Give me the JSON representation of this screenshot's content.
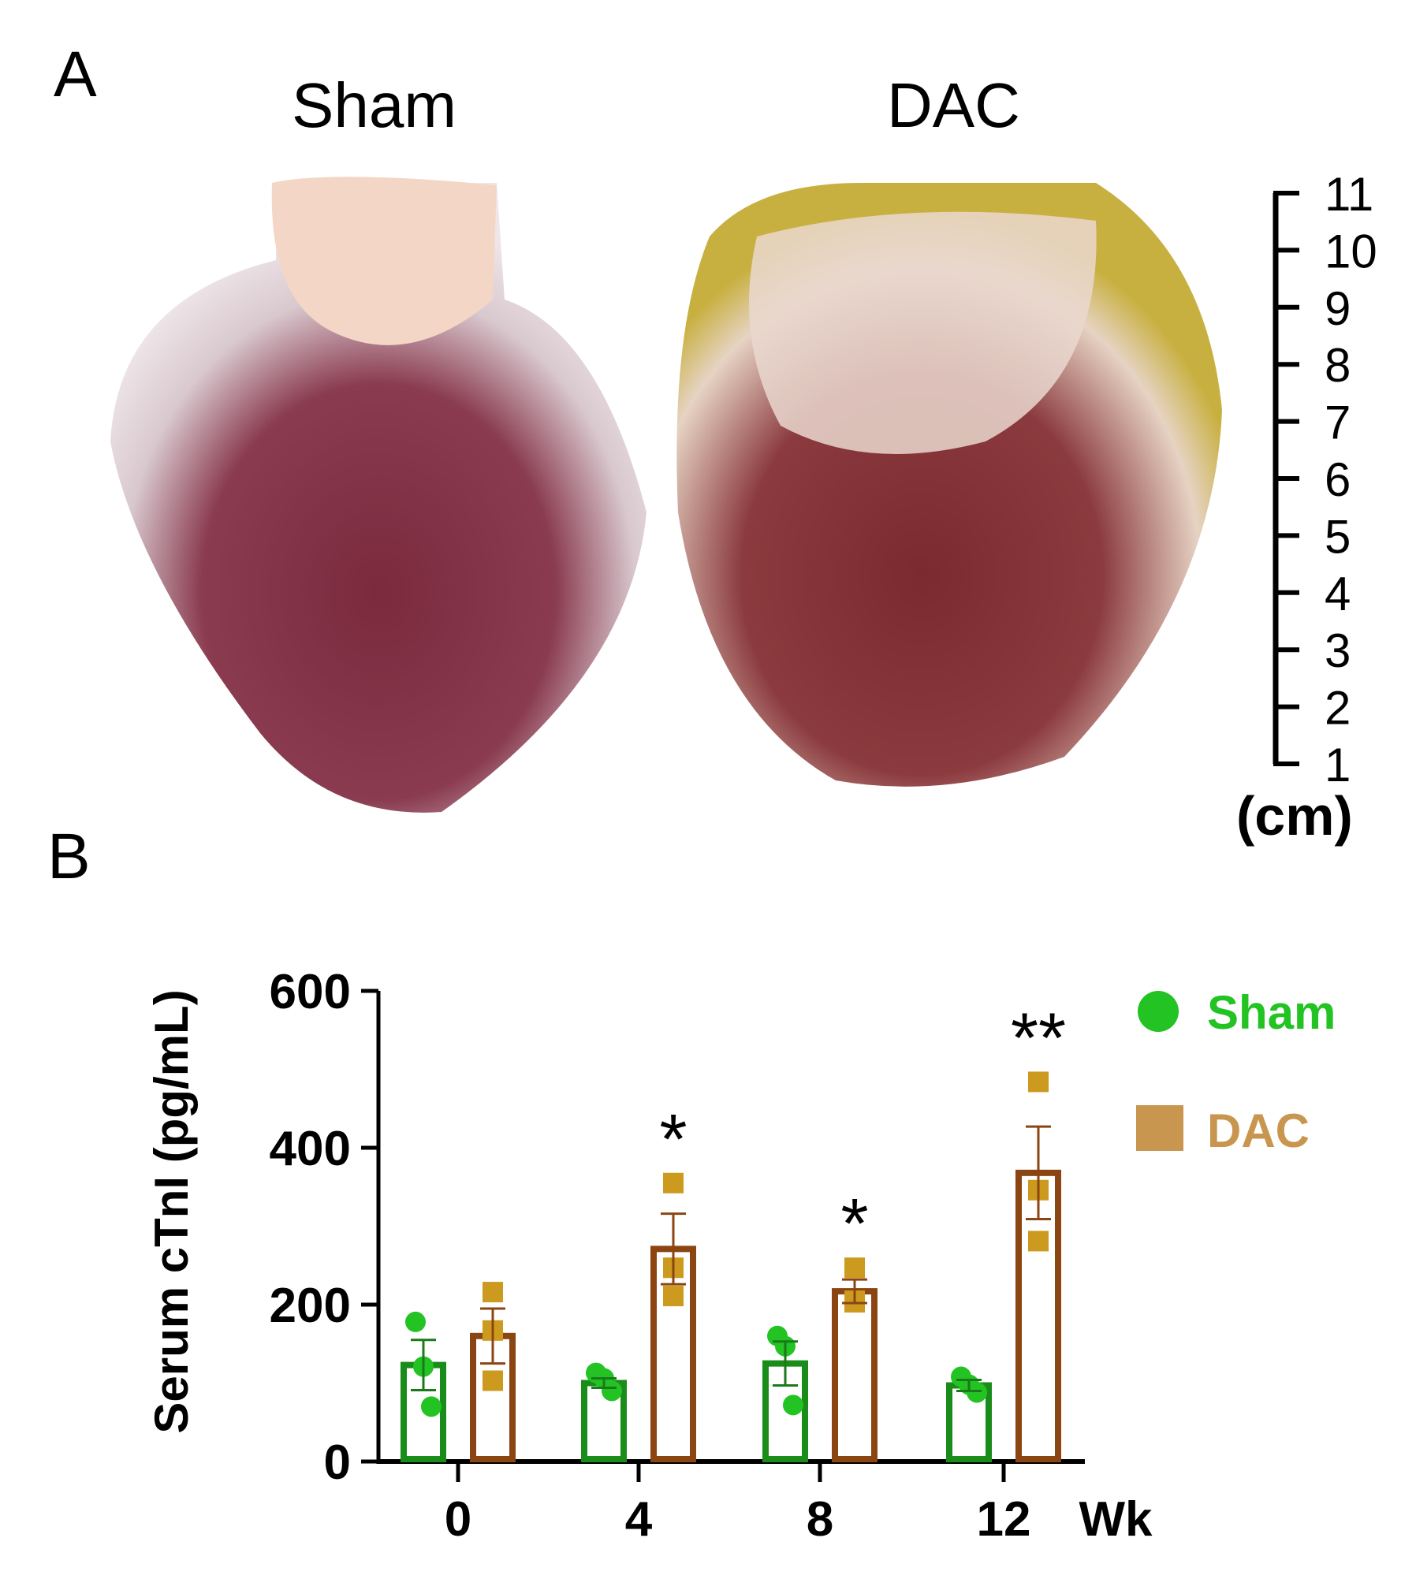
{
  "panel_a": {
    "label": "A",
    "sham_title": "Sham",
    "dac_title": "DAC",
    "ruler_ticks": [
      "1",
      "2",
      "3",
      "4",
      "5",
      "6",
      "7",
      "8",
      "9",
      "10",
      "11"
    ],
    "ruler_unit": "(cm)"
  },
  "panel_b": {
    "label": "B"
  },
  "chart_data": {
    "type": "bar",
    "title": "",
    "xlabel": "Wk",
    "ylabel": "Serum cTnI (pg/mL)",
    "ylim": [
      0,
      600
    ],
    "yticks": [
      "0",
      "200",
      "400",
      "600"
    ],
    "categories": [
      "0",
      "4",
      "8",
      "12"
    ],
    "legend_placement": "top-right",
    "series": [
      {
        "name": "Sham",
        "bar_color": "#1a8c1a",
        "point_color": "#22c322",
        "values": [
          123,
          100,
          125,
          97
        ],
        "sem": [
          32,
          6,
          28,
          7
        ],
        "points": [
          [
            178,
            121,
            70
          ],
          [
            113,
            106,
            90
          ],
          [
            160,
            147,
            72
          ],
          [
            108,
            98,
            88
          ]
        ]
      },
      {
        "name": "DAC",
        "bar_color": "#8b4513",
        "point_color": "#cc9a1e",
        "legend_color": "#c8964f",
        "values": [
          160,
          271,
          217,
          368
        ],
        "sem": [
          35,
          45,
          15,
          59
        ],
        "points": [
          [
            216,
            167,
            103
          ],
          [
            355,
            247,
            211
          ],
          [
            247,
            205,
            203
          ],
          [
            484,
            346,
            281
          ]
        ]
      }
    ],
    "annotations": [
      "",
      "*",
      "*",
      "**"
    ]
  }
}
